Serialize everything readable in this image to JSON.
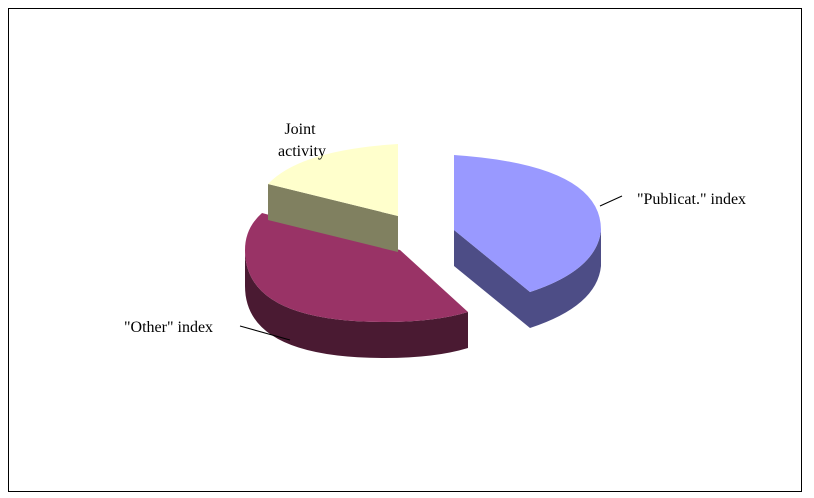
{
  "chart_data": {
    "type": "pie",
    "style": "3d-exploded",
    "legend": "none",
    "slices": [
      {
        "label": "\"Publicat.\" index",
        "value": 42,
        "color": "#9999ff",
        "side_color": "#4d4d86"
      },
      {
        "label": "\"Other\" index",
        "value": 40,
        "color": "#993366",
        "side_color": "#4a1a32"
      },
      {
        "label": "Joint activity",
        "value": 18,
        "color": "#ffffcc",
        "side_color": "#808060"
      }
    ]
  }
}
